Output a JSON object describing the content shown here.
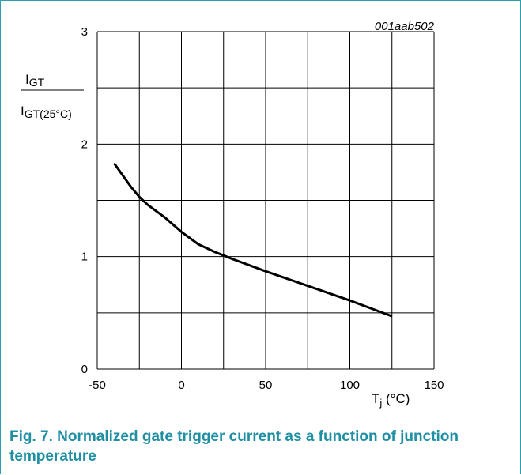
{
  "chart_data": {
    "type": "line",
    "id_label": "001aab502",
    "ylabel_numerator": "I",
    "ylabel_numerator_sub": "GT",
    "ylabel_denominator": "I",
    "ylabel_denominator_sub": "GT(25°C)",
    "xlabel_main": "T",
    "xlabel_sub": "j",
    "xlabel_unit": " (°C)",
    "xlim": [
      -50,
      150
    ],
    "ylim": [
      0,
      3
    ],
    "x_ticks": [
      -50,
      0,
      50,
      100,
      150
    ],
    "y_ticks": [
      0,
      1,
      2,
      3
    ],
    "x_grid": [
      -50,
      -25,
      0,
      25,
      50,
      75,
      100,
      125,
      150
    ],
    "y_grid": [
      0,
      0.5,
      1,
      1.5,
      2,
      2.5,
      3
    ],
    "grid": true,
    "series": [
      {
        "x": [
          -40,
          -30,
          -25,
          -20,
          -10,
          0,
          10,
          20,
          25,
          30,
          50,
          75,
          100,
          125
        ],
        "y": [
          1.83,
          1.62,
          1.53,
          1.46,
          1.35,
          1.22,
          1.11,
          1.04,
          1.01,
          0.98,
          0.87,
          0.74,
          0.61,
          0.47
        ]
      }
    ]
  },
  "caption": "Fig. 7. Normalized gate trigger current as a function of junction temperature"
}
